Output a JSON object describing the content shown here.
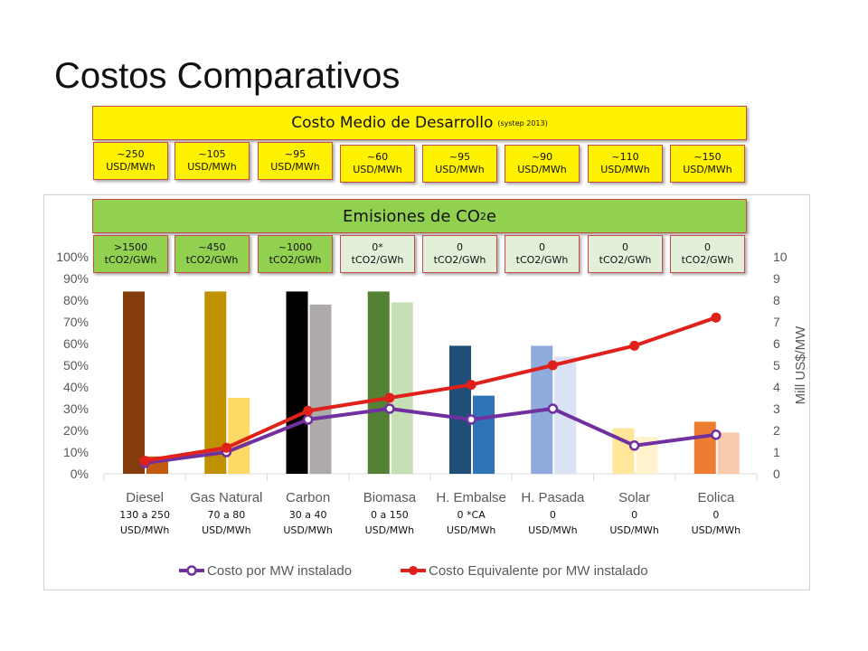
{
  "page": {
    "title": "Costos Comparativos"
  },
  "banners": {
    "cost_title": "Costo Medio de Desarrollo",
    "cost_note": "(systep 2013)",
    "emis_prefix": "Emisiones de CO",
    "emis_sub": "2",
    "emis_suffix": "e"
  },
  "cost_boxes": [
    {
      "value": "~250",
      "unit": "USD/MWh"
    },
    {
      "value": "~105",
      "unit": "USD/MWh"
    },
    {
      "value": "~95",
      "unit": "USD/MWh"
    },
    {
      "value": "~60",
      "unit": "USD/MWh"
    },
    {
      "value": "~95",
      "unit": "USD/MWh"
    },
    {
      "value": "~90",
      "unit": "USD/MWh"
    },
    {
      "value": "~110",
      "unit": "USD/MWh"
    },
    {
      "value": "~150",
      "unit": "USD/MWh"
    }
  ],
  "emission_boxes": [
    {
      "value": ">1500",
      "unit": "tCO2/GWh",
      "style": "g"
    },
    {
      "value": "~450",
      "unit": "tCO2/GWh",
      "style": "g"
    },
    {
      "value": "~1000",
      "unit": "tCO2/GWh",
      "style": "g"
    },
    {
      "value": "0*",
      "unit": "tCO2/GWh",
      "style": "lg"
    },
    {
      "value": "0",
      "unit": "tCO2/GWh",
      "style": "lg"
    },
    {
      "value": "0",
      "unit": "tCO2/GWh",
      "style": "lg"
    },
    {
      "value": "0",
      "unit": "tCO2/GWh",
      "style": "lg"
    },
    {
      "value": "0",
      "unit": "tCO2/GWh",
      "style": "lg"
    }
  ],
  "chart_data": {
    "type": "bar",
    "categories": [
      "Diesel",
      "Gas Natural",
      "Carbon",
      "Biomasa",
      "H. Embalse",
      "H. Pasada",
      "Solar",
      "Eolica"
    ],
    "category_notes": [
      [
        "130 a 250",
        "USD/MWh"
      ],
      [
        "70 a 80",
        "USD/MWh"
      ],
      [
        "30 a 40",
        "USD/MWh"
      ],
      [
        "0 a 150",
        "USD/MWh"
      ],
      [
        "0 *CA",
        "USD/MWh"
      ],
      [
        "0",
        "USD/MWh"
      ],
      [
        "0",
        "USD/MWh"
      ],
      [
        "0",
        "USD/MWh"
      ]
    ],
    "bar_series": [
      {
        "values": [
          84,
          84,
          84,
          84,
          59,
          59,
          21,
          24
        ],
        "colors": [
          "#843c0c",
          "#bf9000",
          "#000000",
          "#548235",
          "#1f4e79",
          "#8faadc",
          "#ffe699",
          "#ed7d31"
        ]
      },
      {
        "values": [
          8,
          35,
          78,
          79,
          36,
          54,
          17,
          19
        ],
        "colors": [
          "#c55a11",
          "#ffd966",
          "#aeaaaa",
          "#c5e0b4",
          "#2e75b6",
          "#dae3f3",
          "#fff2cc",
          "#f8cbad"
        ]
      }
    ],
    "series": [
      {
        "name": "Costo por MW instalado",
        "color": "#7030a0",
        "axis": "right",
        "values": [
          0.5,
          1.0,
          2.5,
          3.0,
          2.5,
          3.0,
          1.3,
          1.8
        ]
      },
      {
        "name": "Costo Equivalente por MW instalado",
        "color": "#e0201b",
        "axis": "right",
        "values": [
          0.6,
          1.2,
          2.9,
          3.5,
          4.1,
          5.0,
          5.9,
          7.2
        ]
      }
    ],
    "y_left": {
      "ticks": [
        "0%",
        "10%",
        "20%",
        "30%",
        "40%",
        "50%",
        "60%",
        "70%",
        "80%",
        "90%",
        "100%"
      ],
      "range": [
        0,
        100
      ]
    },
    "y_right": {
      "ticks": [
        "0",
        "1",
        "2",
        "3",
        "4",
        "5",
        "6",
        "7",
        "8",
        "9",
        "10"
      ],
      "range": [
        0,
        10
      ],
      "label": "Mill US$/MW"
    },
    "legend_position": "bottom",
    "grid": false
  }
}
